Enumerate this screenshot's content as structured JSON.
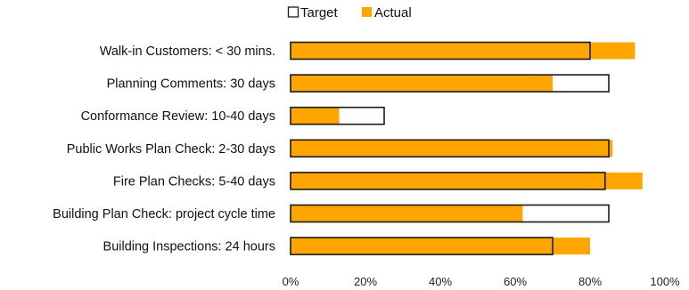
{
  "chart_data": {
    "type": "bar",
    "orientation": "horizontal",
    "categories": [
      "Walk-in Customers: < 30 mins.",
      "Planning Comments: 30 days",
      "Conformance Review: 10-40 days",
      "Public Works Plan Check: 2-30 days",
      "Fire Plan Checks: 5-40 days",
      "Building Plan Check: project cycle time",
      "Building Inspections: 24 hours"
    ],
    "series": [
      {
        "name": "Target",
        "values": [
          80,
          85,
          25,
          85,
          84,
          85,
          70
        ],
        "color": "#ffffff",
        "stroke": "#1a1a1a"
      },
      {
        "name": "Actual",
        "values": [
          92,
          70,
          13,
          86,
          94,
          62,
          80
        ],
        "color": "#ffa500"
      }
    ],
    "xlim": [
      0,
      100
    ],
    "xticks": [
      0,
      20,
      40,
      60,
      80,
      100
    ],
    "xtick_labels": [
      "0%",
      "20%",
      "40%",
      "60%",
      "80%",
      "100%"
    ],
    "title": "",
    "xlabel": "",
    "ylabel": "",
    "legend_position": "top-center",
    "grid": false
  }
}
